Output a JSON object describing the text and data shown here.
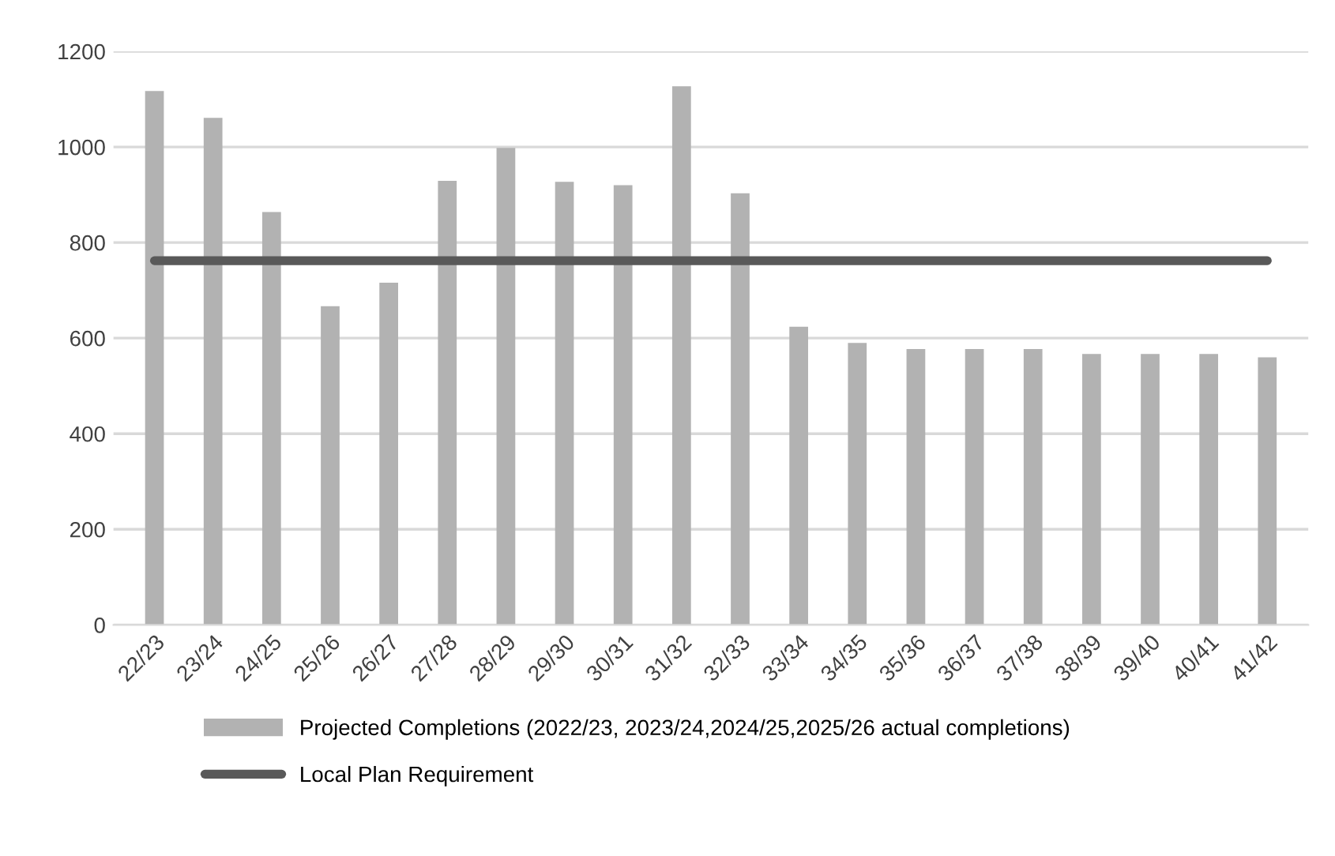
{
  "chart_data": {
    "type": "bar",
    "categories": [
      "22/23",
      "23/24",
      "24/25",
      "25/26",
      "26/27",
      "27/28",
      "28/29",
      "29/30",
      "30/31",
      "31/32",
      "32/33",
      "33/34",
      "34/35",
      "35/36",
      "36/37",
      "37/38",
      "38/39",
      "39/40",
      "40/41",
      "41/42"
    ],
    "series": [
      {
        "name": "Projected Completions (2022/23, 2023/24,2024/25,2025/26 actual completions)",
        "color": "#b2b2b2",
        "values": [
          1117,
          1061,
          864,
          667,
          716,
          929,
          998,
          927,
          920,
          1127,
          903,
          624,
          590,
          577,
          577,
          577,
          567,
          567,
          567,
          560
        ]
      },
      {
        "name": "Local Plan Requirement",
        "type": "line",
        "color": "#595959",
        "values": [
          762,
          762,
          762,
          762,
          762,
          762,
          762,
          762,
          762,
          762,
          762,
          762,
          762,
          762,
          762,
          762,
          762,
          762,
          762,
          762
        ]
      }
    ],
    "ylim": [
      0,
      1200
    ],
    "yticks": [
      0,
      200,
      400,
      600,
      800,
      1000,
      1200
    ],
    "grid": "y",
    "legend": "bottom",
    "marker": "none",
    "line_style": "solid"
  }
}
